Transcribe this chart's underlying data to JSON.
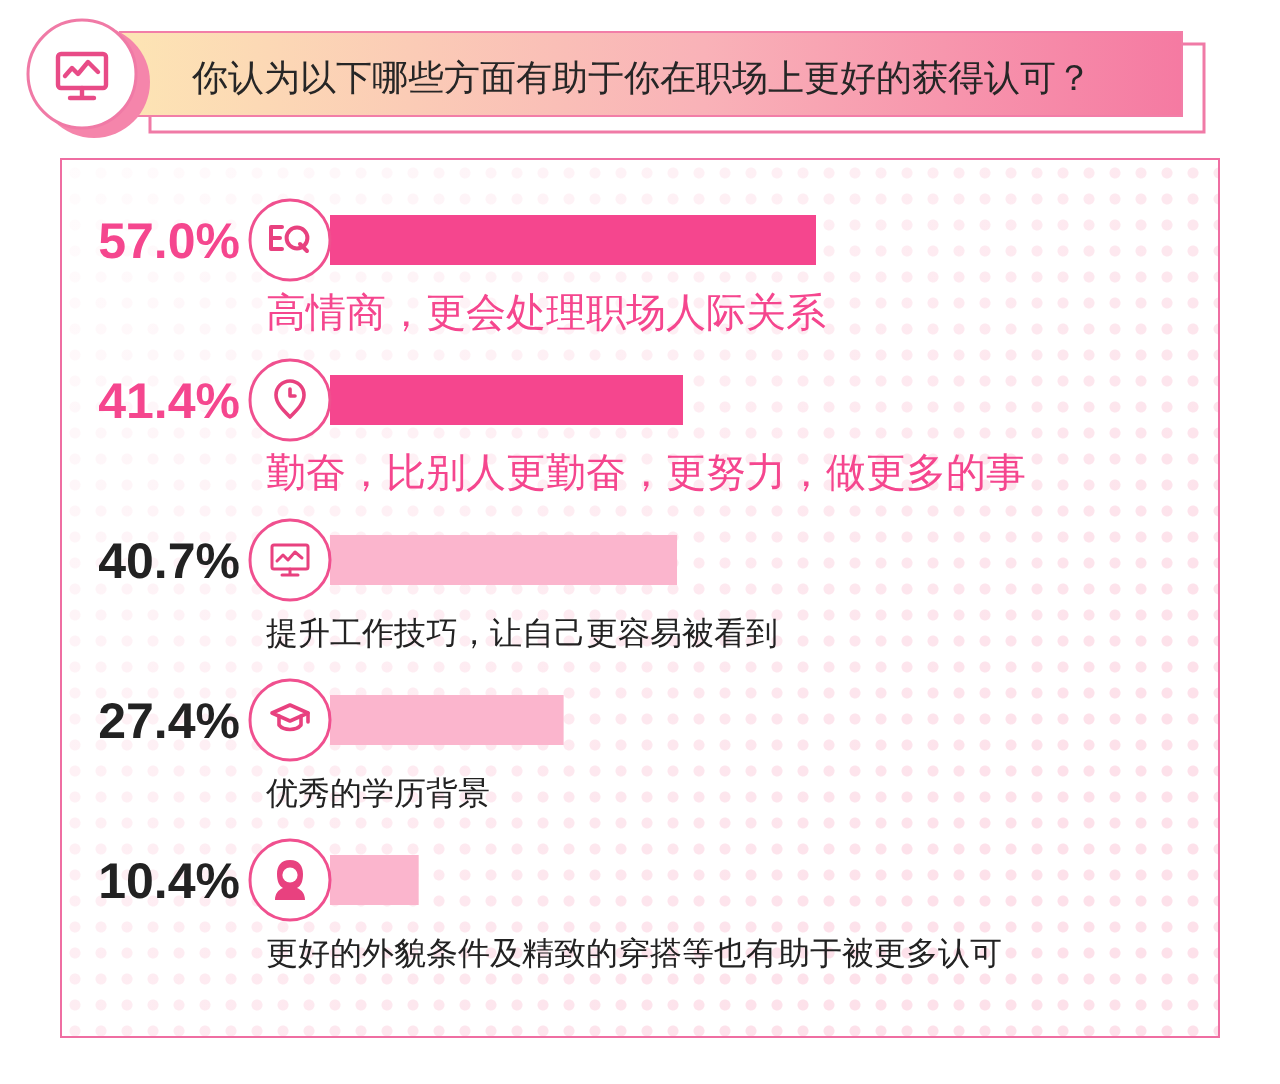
{
  "chart_data": {
    "type": "bar",
    "orientation": "horizontal",
    "title": "你认为以下哪些方面有助于你在职场上更好的获得认可？",
    "categories": [
      "高情商，更会处理职场人际关系",
      "勤奋，比别人更勤奋，更努力，做更多的事",
      "提升工作技巧，让自己更容易被看到",
      "优秀的学历背景",
      "更好的外貌条件及精致的穿搭等也有助于被更多认可"
    ],
    "values": [
      57.0,
      41.4,
      40.7,
      27.4,
      10.4
    ],
    "colors": [
      "#f5468e",
      "#f5468e",
      "#fbb5cd",
      "#fbb5cd",
      "#fbb5cd"
    ],
    "value_labels": [
      "57.0%",
      "41.4%",
      "40.7%",
      "27.4%",
      "10.4%"
    ]
  }
}
